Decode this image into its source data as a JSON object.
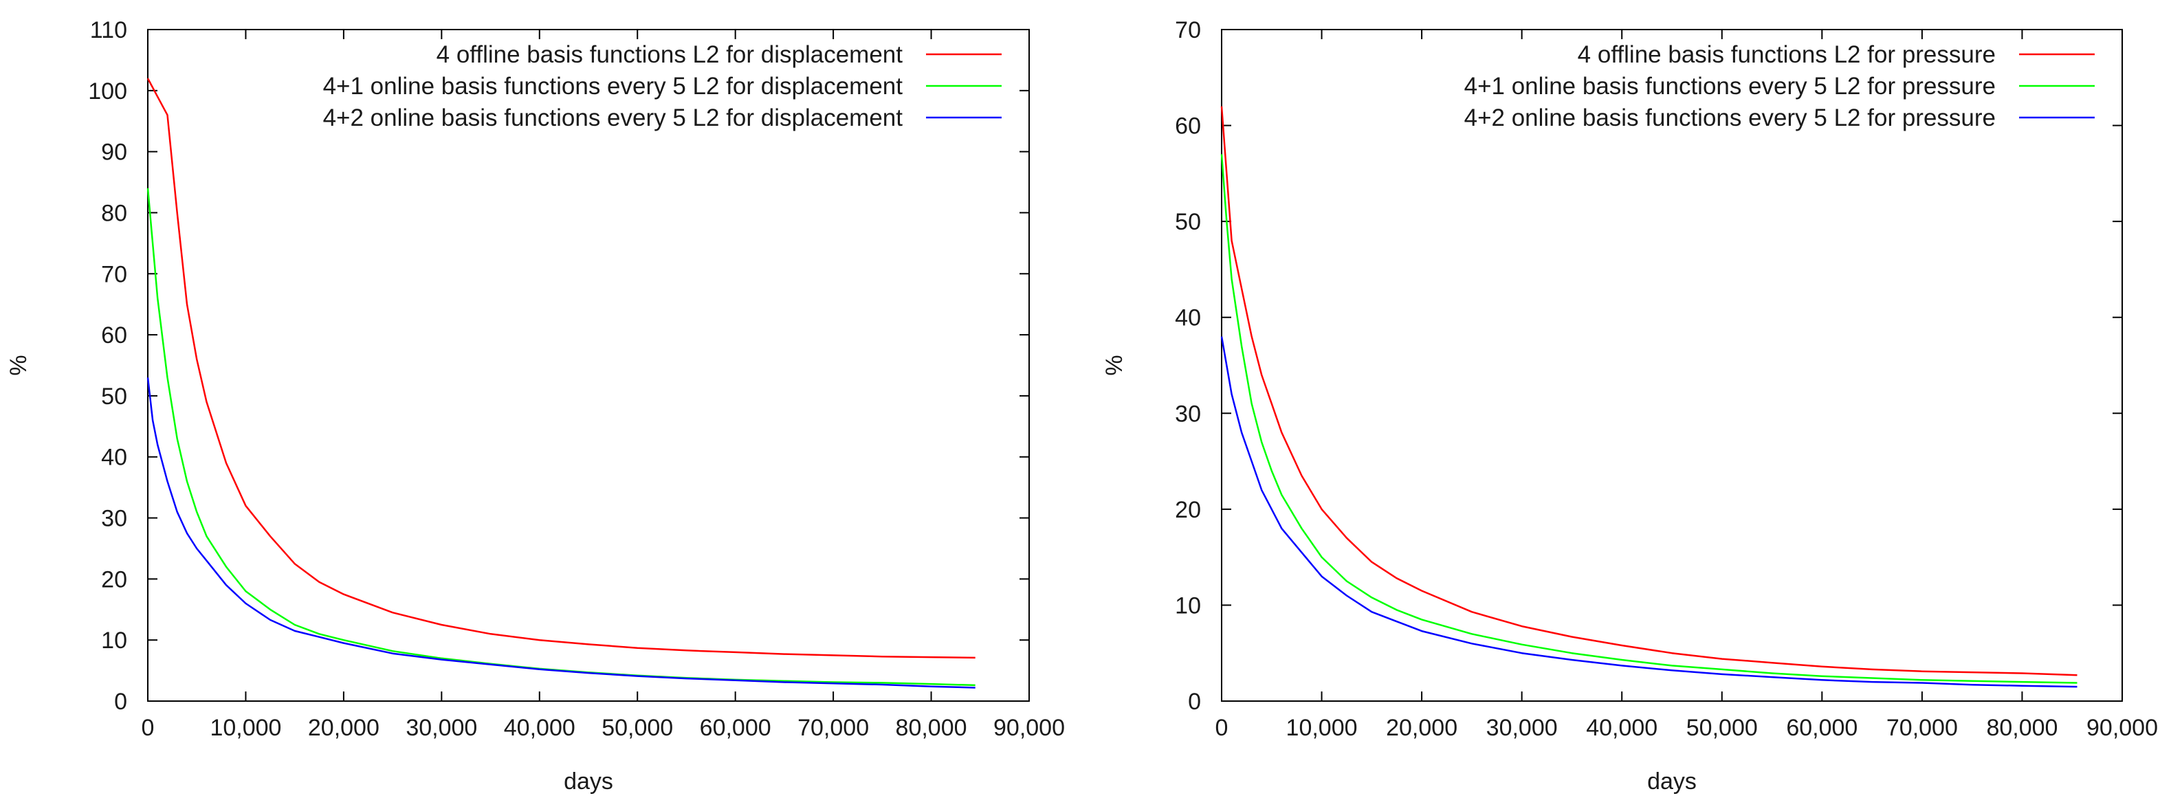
{
  "chart_data": [
    {
      "type": "line",
      "title": "",
      "xlabel": "days",
      "ylabel": "%",
      "xlim": [
        0,
        90000
      ],
      "ylim": [
        0,
        110
      ],
      "x_ticks": [
        0,
        10000,
        20000,
        30000,
        40000,
        50000,
        60000,
        70000,
        80000,
        90000
      ],
      "x_tick_labels": [
        "0",
        "10,000",
        "20,000",
        "30,000",
        "40,000",
        "50,000",
        "60,000",
        "70,000",
        "80,000",
        "90,000"
      ],
      "y_ticks": [
        0,
        10,
        20,
        30,
        40,
        50,
        60,
        70,
        80,
        90,
        100,
        110
      ],
      "y_tick_labels": [
        "0",
        "10",
        "20",
        "30",
        "40",
        "50",
        "60",
        "70",
        "80",
        "90",
        "100",
        "110"
      ],
      "legend_position": "top-right",
      "grid": false,
      "series": [
        {
          "name": "4 offline basis functions L2 for displacement",
          "color": "#ff0000",
          "x": [
            0,
            1000,
            2000,
            3000,
            4000,
            5000,
            6000,
            8000,
            10000,
            12500,
            15000,
            17500,
            20000,
            25000,
            30000,
            35000,
            40000,
            45000,
            50000,
            55000,
            60000,
            65000,
            70000,
            75000,
            80000,
            84500
          ],
          "y": [
            102,
            99,
            96,
            80,
            65,
            56,
            49,
            39,
            32,
            27,
            22.5,
            19.5,
            17.5,
            14.5,
            12.5,
            11,
            10,
            9.3,
            8.7,
            8.3,
            8,
            7.7,
            7.5,
            7.3,
            7.2,
            7.1
          ]
        },
        {
          "name": "4+1 online basis functions every 5 L2 for displacement",
          "color": "#00ff00",
          "x": [
            0,
            500,
            1000,
            2000,
            3000,
            4000,
            5000,
            6000,
            8000,
            10000,
            12500,
            15000,
            17500,
            20000,
            25000,
            30000,
            35000,
            40000,
            45000,
            50000,
            55000,
            60000,
            65000,
            70000,
            75000,
            80000,
            84500
          ],
          "y": [
            84,
            75,
            66,
            53,
            43,
            36,
            31,
            27,
            22,
            18,
            15,
            12.5,
            11,
            10,
            8.2,
            7,
            6.1,
            5.3,
            4.7,
            4.2,
            3.8,
            3.5,
            3.3,
            3.1,
            3,
            2.8,
            2.6
          ]
        },
        {
          "name": "4+2 online basis functions every 5 L2 for displacement",
          "color": "#0000ff",
          "x": [
            0,
            500,
            1000,
            2000,
            3000,
            4000,
            5000,
            6000,
            8000,
            10000,
            12500,
            15000,
            17500,
            20000,
            25000,
            30000,
            35000,
            40000,
            45000,
            50000,
            55000,
            60000,
            65000,
            70000,
            75000,
            80000,
            84500
          ],
          "y": [
            53,
            46,
            42,
            36,
            31,
            27.5,
            25,
            23,
            19,
            16,
            13.3,
            11.5,
            10.5,
            9.5,
            7.8,
            6.8,
            6,
            5.2,
            4.6,
            4.1,
            3.7,
            3.4,
            3.1,
            2.9,
            2.7,
            2.4,
            2.2
          ]
        }
      ]
    },
    {
      "type": "line",
      "title": "",
      "xlabel": "days",
      "ylabel": "%",
      "xlim": [
        0,
        90000
      ],
      "ylim": [
        0,
        70
      ],
      "x_ticks": [
        0,
        10000,
        20000,
        30000,
        40000,
        50000,
        60000,
        70000,
        80000,
        90000
      ],
      "x_tick_labels": [
        "0",
        "10,000",
        "20,000",
        "30,000",
        "40,000",
        "50,000",
        "60,000",
        "70,000",
        "80,000",
        "90,000"
      ],
      "y_ticks": [
        0,
        10,
        20,
        30,
        40,
        50,
        60,
        70
      ],
      "y_tick_labels": [
        "0",
        "10",
        "20",
        "30",
        "40",
        "50",
        "60",
        "70"
      ],
      "legend_position": "top-right",
      "grid": false,
      "series": [
        {
          "name": "4 offline basis functions L2 for pressure",
          "color": "#ff0000",
          "x": [
            0,
            500,
            1000,
            2000,
            3000,
            4000,
            5000,
            6000,
            8000,
            10000,
            12500,
            15000,
            17500,
            20000,
            25000,
            30000,
            35000,
            40000,
            45000,
            50000,
            55000,
            60000,
            65000,
            70000,
            75000,
            80000,
            85500
          ],
          "y": [
            62,
            55,
            48,
            43,
            38,
            34,
            31,
            28,
            23.5,
            20,
            17,
            14.5,
            12.8,
            11.5,
            9.3,
            7.8,
            6.7,
            5.8,
            5,
            4.4,
            4,
            3.6,
            3.3,
            3.1,
            3,
            2.9,
            2.7
          ]
        },
        {
          "name": "4+1 online basis functions every 5 L2 for pressure",
          "color": "#00ff00",
          "x": [
            0,
            500,
            1000,
            2000,
            3000,
            4000,
            5000,
            6000,
            8000,
            10000,
            12500,
            15000,
            17500,
            20000,
            25000,
            30000,
            35000,
            40000,
            45000,
            50000,
            55000,
            60000,
            65000,
            70000,
            75000,
            80000,
            85500
          ],
          "y": [
            57,
            50,
            44,
            37,
            31,
            27,
            24,
            21.5,
            18,
            15,
            12.5,
            10.8,
            9.5,
            8.5,
            7,
            5.9,
            5,
            4.3,
            3.7,
            3.3,
            2.9,
            2.6,
            2.4,
            2.2,
            2.1,
            2,
            1.9
          ]
        },
        {
          "name": "4+2 online basis functions every 5 L2 for pressure",
          "color": "#0000ff",
          "x": [
            0,
            500,
            1000,
            2000,
            3000,
            4000,
            5000,
            6000,
            8000,
            10000,
            12500,
            15000,
            17500,
            20000,
            25000,
            30000,
            35000,
            40000,
            45000,
            50000,
            55000,
            60000,
            65000,
            70000,
            75000,
            80000,
            85500
          ],
          "y": [
            38,
            35,
            32,
            28,
            25,
            22,
            20,
            18,
            15.5,
            13,
            11,
            9.3,
            8.3,
            7.3,
            6,
            5,
            4.3,
            3.7,
            3.2,
            2.8,
            2.5,
            2.2,
            2,
            1.9,
            1.7,
            1.6,
            1.5
          ]
        }
      ]
    }
  ]
}
